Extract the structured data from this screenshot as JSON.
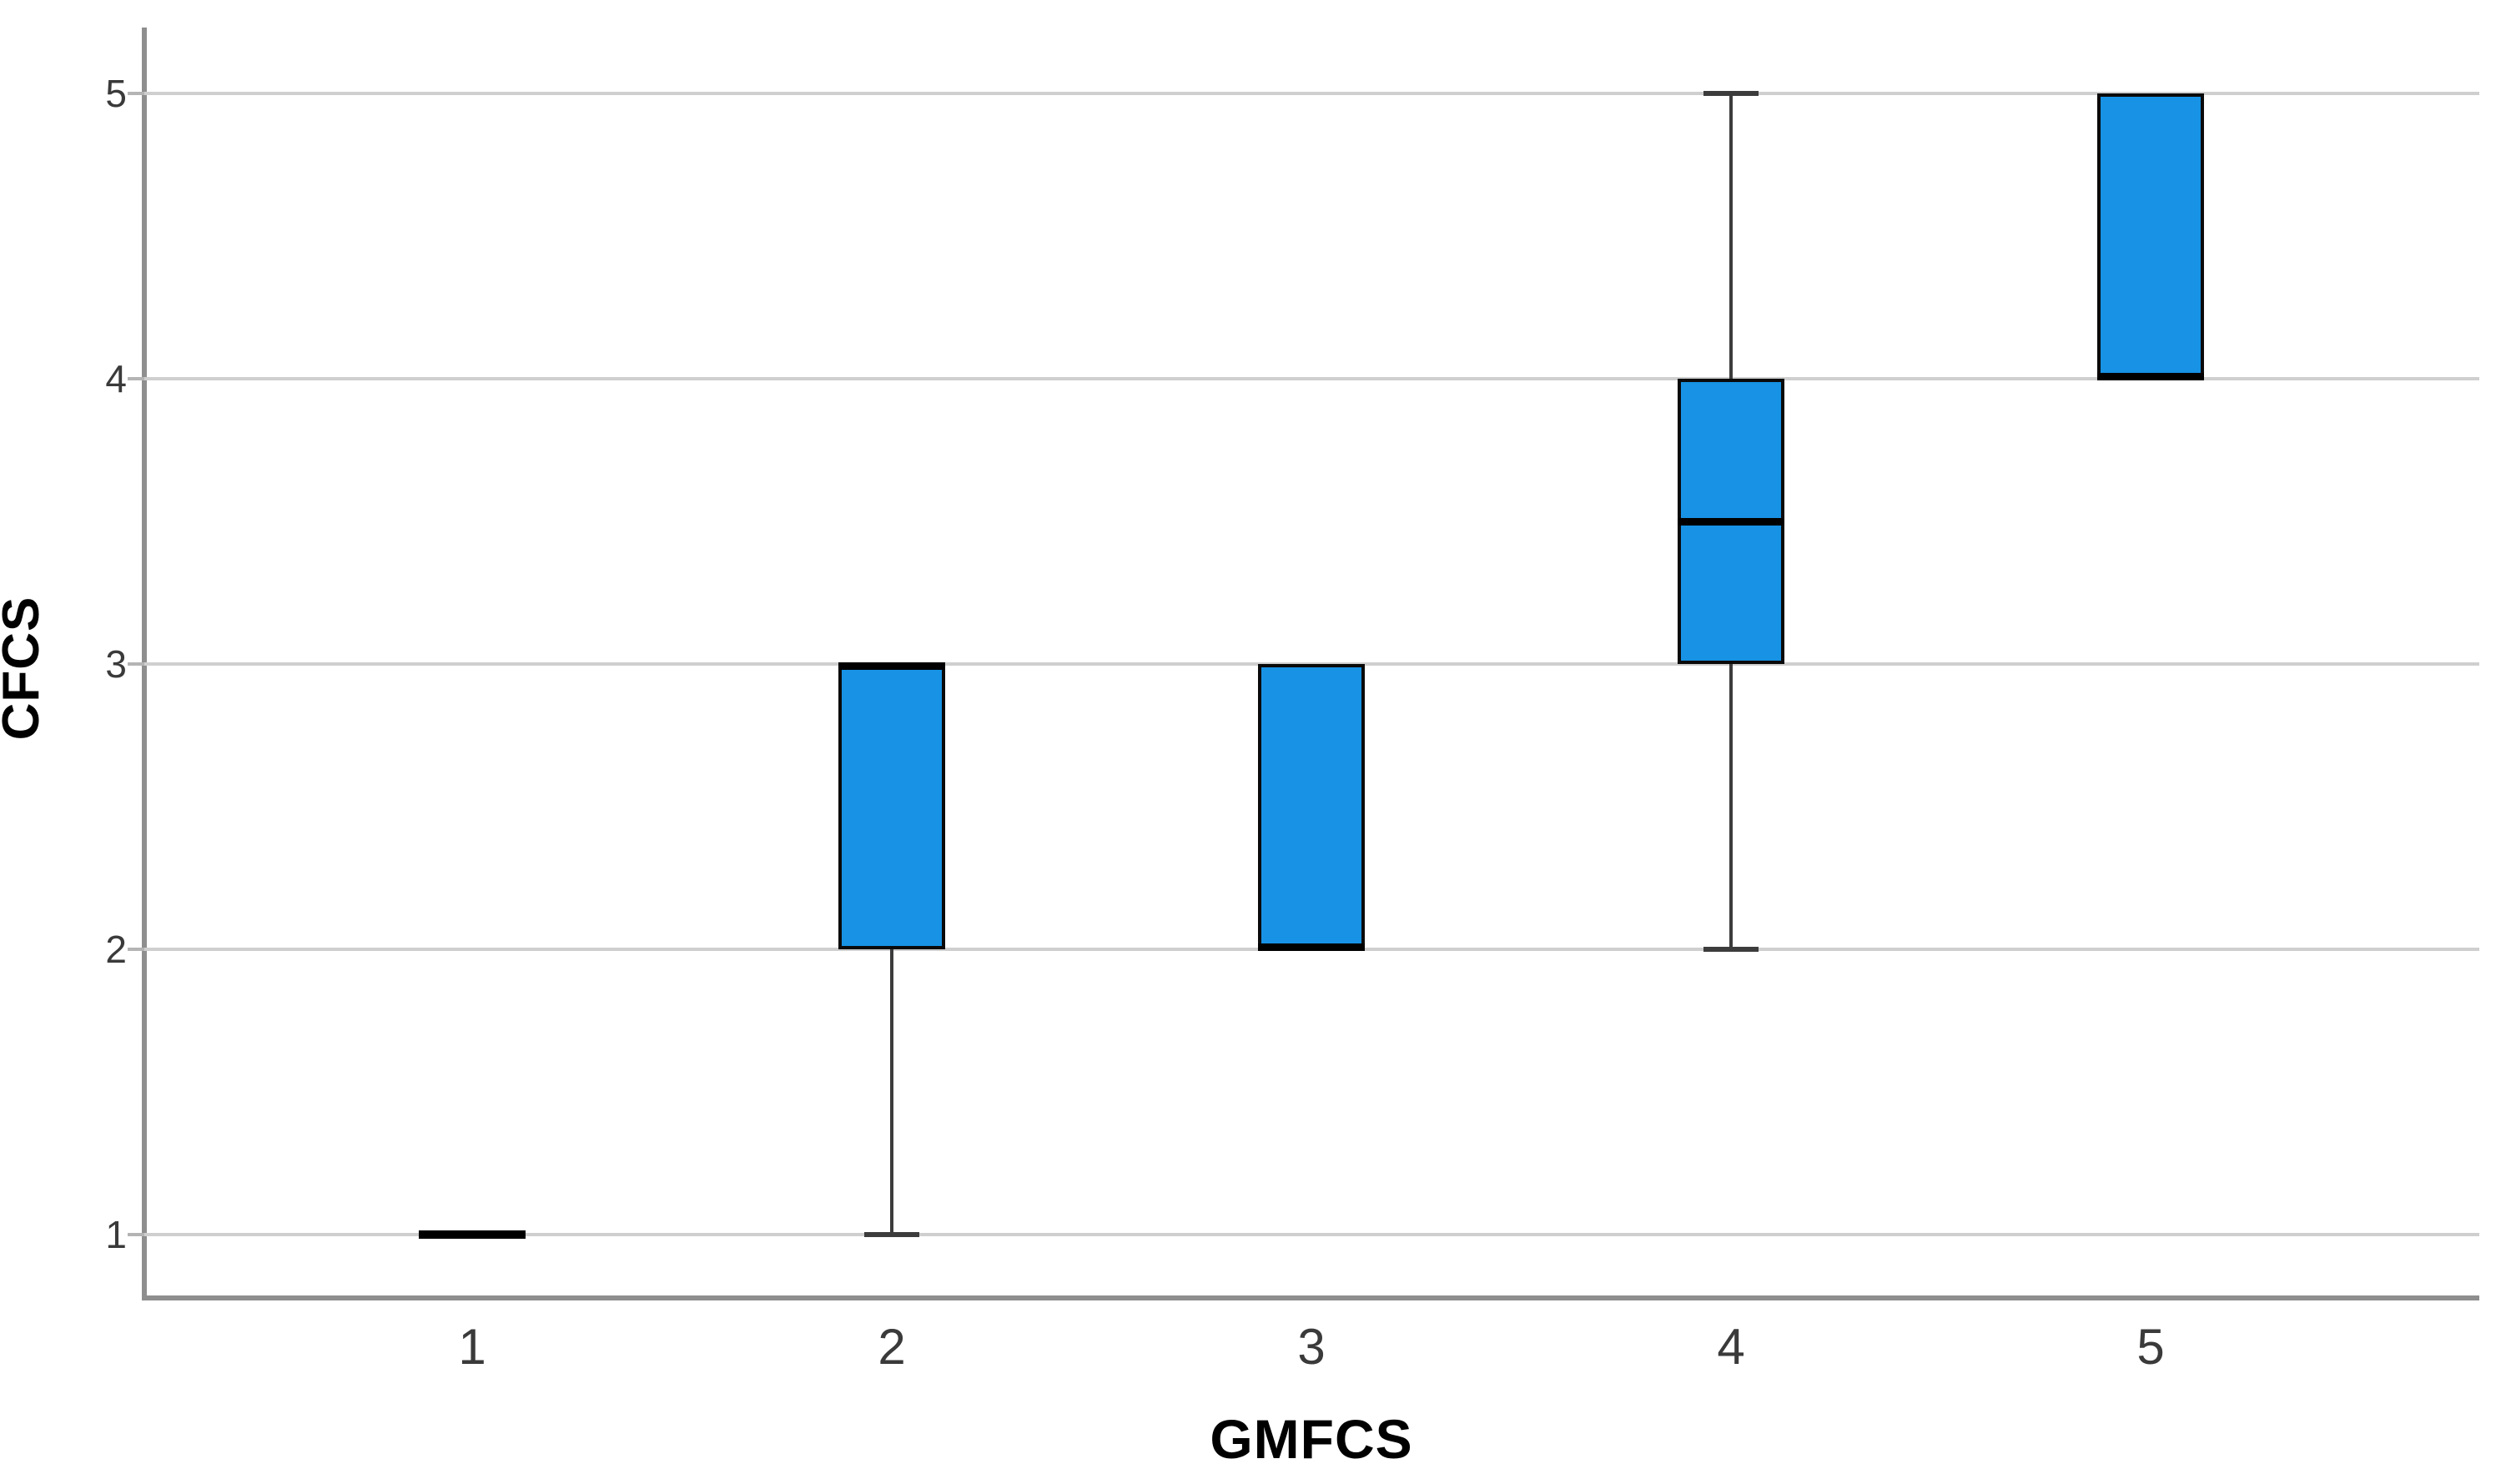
{
  "chart_data": {
    "type": "boxplot",
    "title": "",
    "xlabel": "GMFCS",
    "ylabel": "CFCS",
    "categories": [
      "1",
      "2",
      "3",
      "4",
      "5"
    ],
    "y_ticks": [
      "1",
      "2",
      "3",
      "4",
      "5"
    ],
    "ylim": [
      1,
      5
    ],
    "grid": "horizontal",
    "legend": "none",
    "boxes": [
      {
        "category": "1",
        "q1": 1,
        "median": 1,
        "q3": 1,
        "whisker_low": 1,
        "whisker_high": 1
      },
      {
        "category": "2",
        "q1": 2,
        "median": 3,
        "q3": 3,
        "whisker_low": 1,
        "whisker_high": 3
      },
      {
        "category": "3",
        "q1": 2,
        "median": 2,
        "q3": 3,
        "whisker_low": 2,
        "whisker_high": 3
      },
      {
        "category": "4",
        "q1": 3,
        "median": 3.5,
        "q3": 4,
        "whisker_low": 2,
        "whisker_high": 5
      },
      {
        "category": "5",
        "q1": 4,
        "median": 4,
        "q3": 5,
        "whisker_low": 4,
        "whisker_high": 5
      }
    ],
    "colors": {
      "box_fill": "#1792e4",
      "box_border": "#0a0a0a",
      "median_line": "#000000",
      "whisker": "#3c3c3c",
      "gridline": "#cfcfcf",
      "axis_line": "#8e8e8e",
      "tick_label": "#3a3a3a",
      "axis_title": "#000000",
      "background": "#ffffff"
    }
  }
}
